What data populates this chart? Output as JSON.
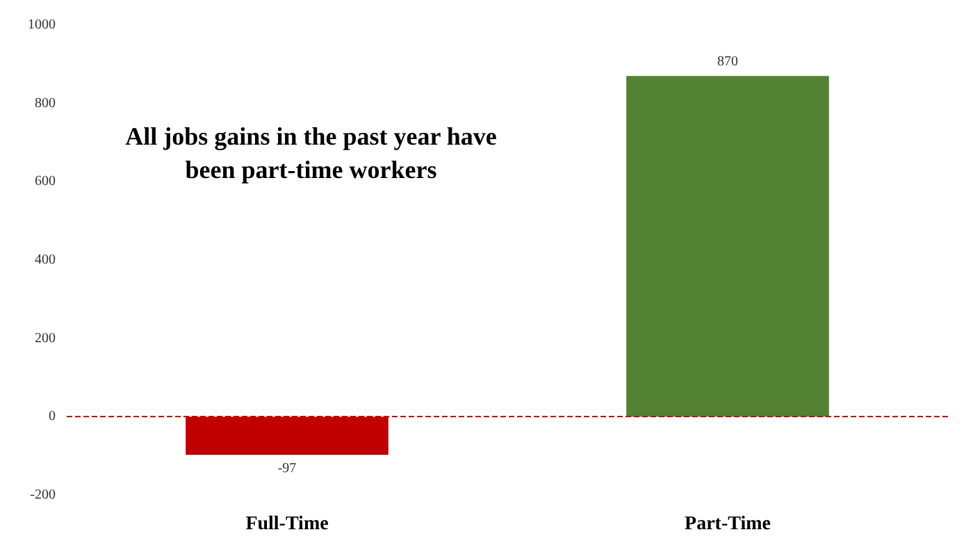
{
  "chart_data": {
    "type": "bar",
    "categories": [
      "Full-Time",
      "Part-Time"
    ],
    "values": [
      -97,
      870
    ],
    "colors": [
      "#c00000",
      "#548235"
    ],
    "ylim": [
      -200,
      1000
    ],
    "yticks": [
      -200,
      0,
      200,
      400,
      600,
      800,
      1000
    ],
    "grid": false,
    "data_labels": true,
    "ref_lines": [
      {
        "axis": "y",
        "value": 0,
        "color": "#c00000",
        "line_style": "dashed"
      }
    ],
    "annotations": [
      "All jobs gains in the past year have\nbeen part-time workers"
    ]
  }
}
